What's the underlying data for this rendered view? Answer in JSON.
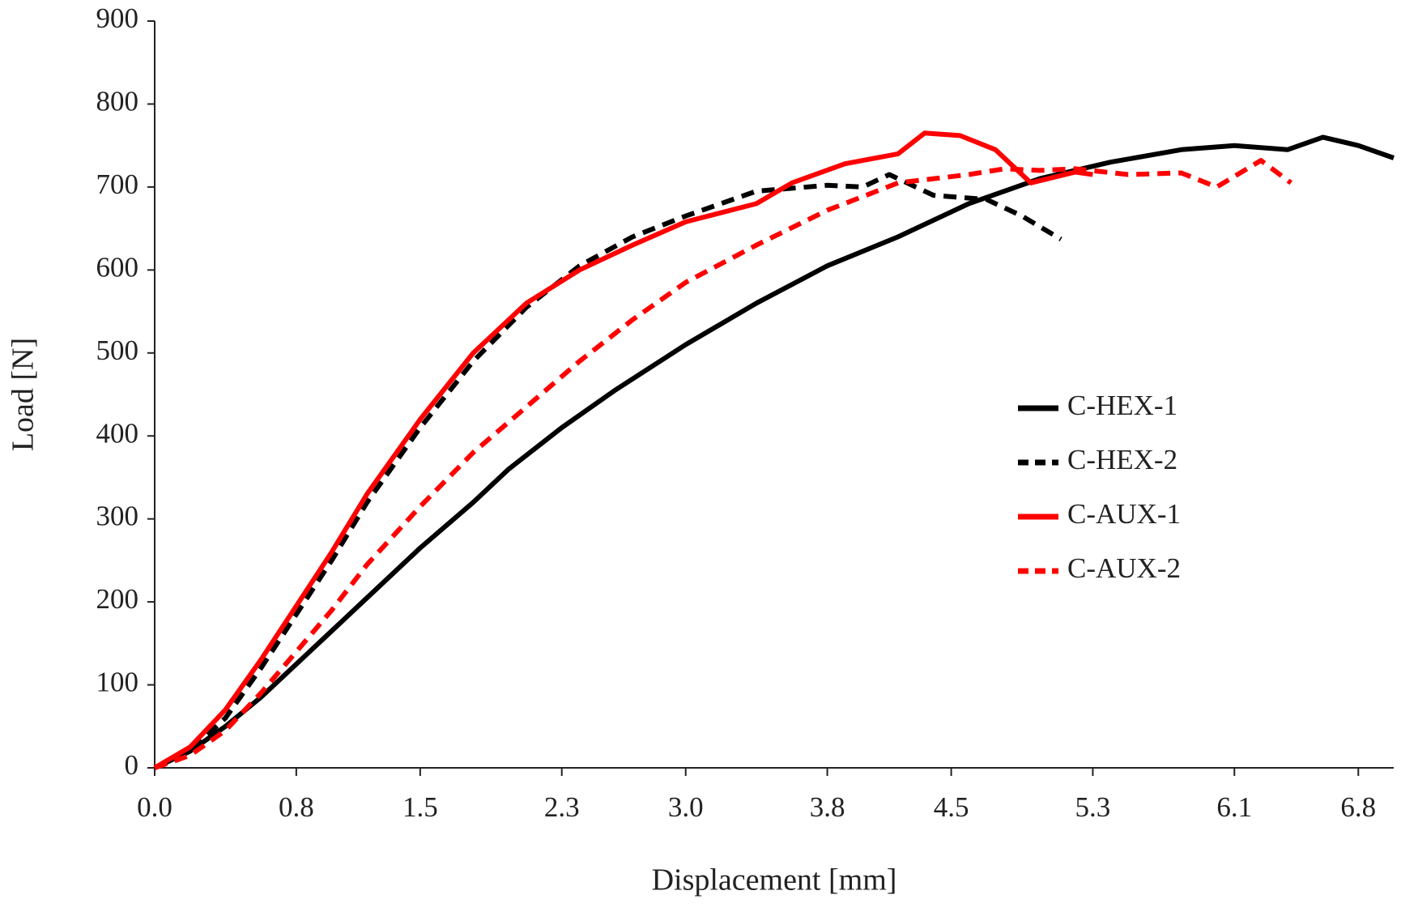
{
  "chart_data": {
    "type": "line",
    "xlabel": "Displacement [mm]",
    "ylabel": "Load [N]",
    "xlim": [
      0,
      7.0
    ],
    "ylim": [
      0,
      900
    ],
    "xticks": [
      {
        "value": 0,
        "label": "0.0"
      },
      0.8,
      1.5,
      2.3,
      {
        "value": 3,
        "label": "3.0"
      },
      3.8,
      4.5,
      5.3,
      6.1,
      6.8
    ],
    "yticks": [
      0,
      100,
      200,
      300,
      400,
      500,
      600,
      700,
      800,
      900
    ],
    "legend": "right",
    "series": [
      {
        "name": "C-HEX-1",
        "color": "#000000",
        "style": "solid",
        "x": [
          0,
          0.2,
          0.4,
          0.6,
          0.8,
          1.0,
          1.2,
          1.5,
          1.8,
          2.0,
          2.3,
          2.6,
          3.0,
          3.4,
          3.8,
          4.2,
          4.6,
          5.0,
          5.4,
          5.8,
          6.1,
          6.4,
          6.6,
          6.8,
          7.0
        ],
        "values": [
          0,
          20,
          50,
          85,
          125,
          165,
          205,
          265,
          320,
          360,
          410,
          455,
          510,
          560,
          605,
          640,
          680,
          710,
          730,
          745,
          750,
          745,
          760,
          750,
          735
        ]
      },
      {
        "name": "C-HEX-2",
        "color": "#000000",
        "style": "dashed",
        "x": [
          0,
          0.2,
          0.4,
          0.6,
          0.8,
          1.0,
          1.2,
          1.5,
          1.8,
          2.1,
          2.4,
          2.7,
          3.0,
          3.4,
          3.8,
          4.0,
          4.15,
          4.4,
          4.7,
          4.9,
          5.12
        ],
        "values": [
          0,
          20,
          60,
          120,
          185,
          250,
          320,
          410,
          490,
          555,
          605,
          640,
          665,
          695,
          702,
          700,
          715,
          690,
          685,
          665,
          637
        ]
      },
      {
        "name": "C-AUX-1",
        "color": "#ff0000",
        "style": "solid",
        "x": [
          0,
          0.2,
          0.4,
          0.6,
          0.8,
          1.0,
          1.2,
          1.5,
          1.8,
          2.1,
          2.4,
          2.7,
          3.0,
          3.4,
          3.6,
          3.9,
          4.2,
          4.35,
          4.55,
          4.75,
          4.95,
          5.2,
          5.3
        ],
        "values": [
          0,
          25,
          70,
          130,
          195,
          260,
          330,
          420,
          500,
          560,
          600,
          630,
          658,
          680,
          705,
          728,
          740,
          765,
          762,
          745,
          705,
          718,
          715
        ]
      },
      {
        "name": "C-AUX-2",
        "color": "#ff0000",
        "style": "dashed",
        "x": [
          0,
          0.2,
          0.4,
          0.6,
          0.8,
          1.0,
          1.2,
          1.5,
          1.8,
          2.1,
          2.4,
          2.7,
          3.0,
          3.4,
          3.8,
          4.2,
          4.6,
          4.8,
          5.0,
          5.2,
          5.5,
          5.8,
          6.0,
          6.25,
          6.42
        ],
        "values": [
          0,
          15,
          45,
          90,
          140,
          190,
          245,
          315,
          380,
          435,
          490,
          540,
          585,
          630,
          672,
          705,
          715,
          722,
          720,
          722,
          715,
          717,
          700,
          732,
          705
        ]
      }
    ]
  }
}
